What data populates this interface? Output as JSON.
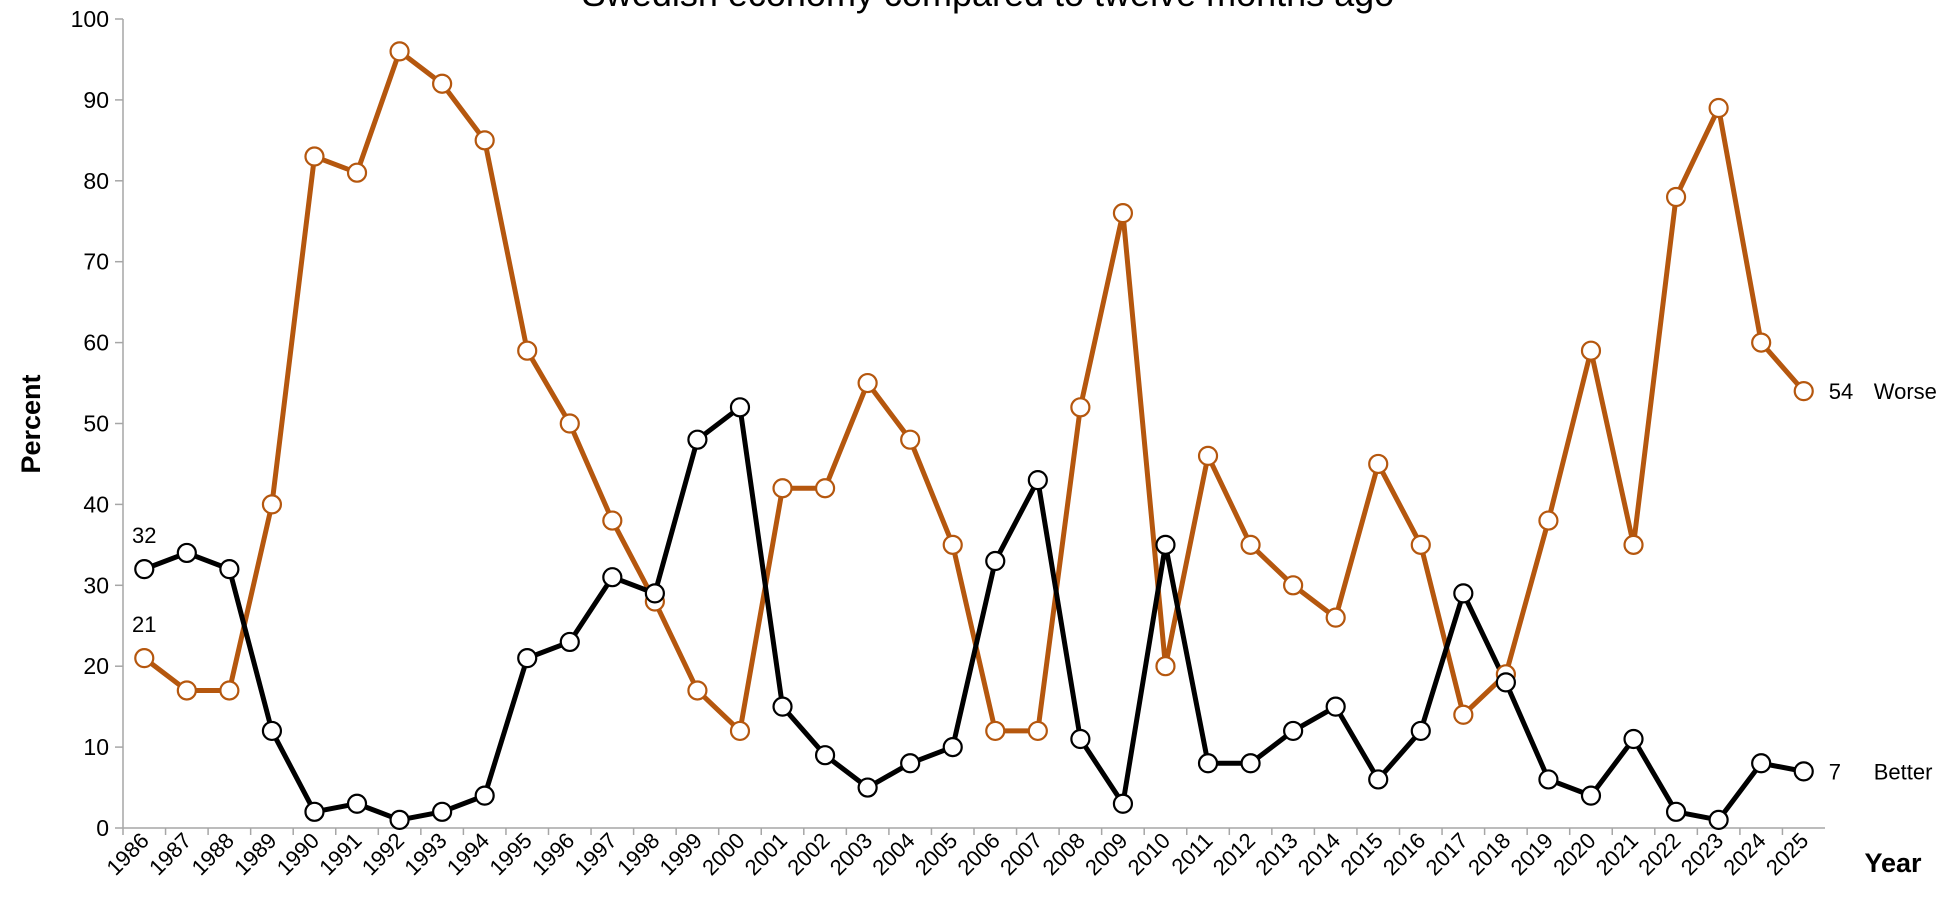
{
  "chart_data": {
    "type": "line",
    "title": "Swedish economy compared to twelve months ago",
    "y_label": "Percent",
    "x_label": "Year",
    "categories": [
      "1986",
      "1987",
      "1988",
      "1989",
      "1990",
      "1991",
      "1992",
      "1993",
      "1994",
      "1995",
      "1996",
      "1997",
      "1998",
      "1999",
      "2000",
      "2001",
      "2002",
      "2003",
      "2004",
      "2005",
      "2006",
      "2007",
      "2008",
      "2009",
      "2010",
      "2011",
      "2012",
      "2013",
      "2014",
      "2015",
      "2016",
      "2017",
      "2018",
      "2019",
      "2020",
      "2021",
      "2022",
      "2023",
      "2024",
      "2025"
    ],
    "series": [
      {
        "name": "Better",
        "color": "#000000",
        "values": [
          32,
          34,
          32,
          12,
          2,
          3,
          1,
          2,
          4,
          21,
          23,
          31,
          29,
          48,
          52,
          15,
          9,
          5,
          8,
          10,
          33,
          43,
          11,
          3,
          35,
          8,
          8,
          12,
          15,
          6,
          12,
          29,
          18,
          6,
          4,
          11,
          2,
          1,
          8,
          7
        ]
      },
      {
        "name": "Worse",
        "color": "#b5570e",
        "values": [
          21,
          17,
          17,
          40,
          83,
          81,
          96,
          92,
          85,
          59,
          50,
          38,
          28,
          17,
          12,
          42,
          42,
          55,
          48,
          35,
          12,
          12,
          52,
          76,
          20,
          46,
          35,
          30,
          26,
          45,
          35,
          14,
          19,
          38,
          59,
          35,
          78,
          89,
          60,
          54
        ]
      }
    ],
    "ylim": [
      0,
      100
    ],
    "yticks": [
      0,
      10,
      20,
      30,
      40,
      50,
      60,
      70,
      80,
      90,
      100
    ],
    "grid": false
  }
}
